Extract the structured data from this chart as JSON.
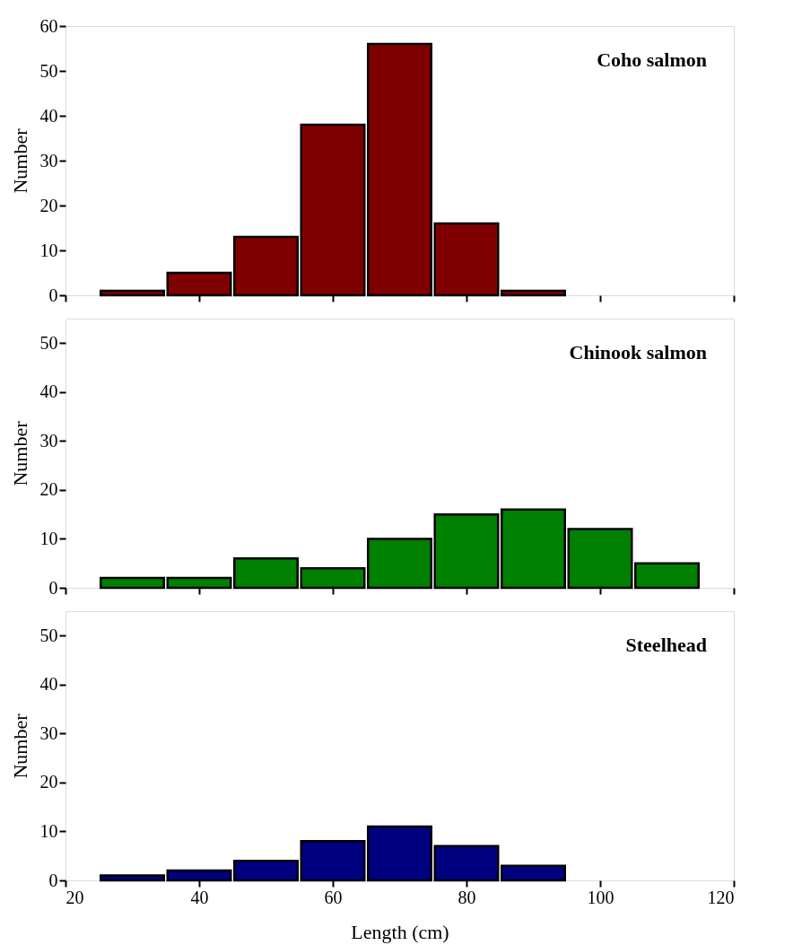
{
  "chart_data": [
    {
      "type": "histogram",
      "title": "Coho salmon",
      "ylabel": "Number",
      "bins": [
        25,
        35,
        45,
        55,
        65,
        75,
        85,
        95
      ],
      "values": [
        1,
        5,
        13,
        38,
        56,
        16,
        1
      ],
      "color": "#800000",
      "xlim": [
        20,
        120
      ],
      "xticks": [
        20,
        40,
        60,
        80,
        100,
        120
      ],
      "ylim": [
        0,
        60
      ],
      "yticks": [
        0,
        10,
        20,
        30,
        40,
        50,
        60
      ],
      "tick_labels": "y",
      "grid": false
    },
    {
      "type": "histogram",
      "title": "Chinook salmon",
      "ylabel": "Number",
      "bins": [
        25,
        35,
        45,
        55,
        65,
        75,
        85,
        95,
        105,
        115
      ],
      "values": [
        2,
        2,
        6,
        4,
        10,
        15,
        16,
        12,
        5
      ],
      "color": "#008000",
      "xlim": [
        20,
        120
      ],
      "xticks": [
        20,
        40,
        60,
        80,
        100,
        120
      ],
      "ylim": [
        0,
        55
      ],
      "yticks": [
        0,
        10,
        20,
        30,
        40,
        50
      ],
      "tick_labels": "y",
      "grid": false
    },
    {
      "type": "histogram",
      "title": "Steelhead",
      "ylabel": "Number",
      "xlabel": "Length (cm)",
      "bins": [
        25,
        35,
        45,
        55,
        65,
        75,
        85,
        95
      ],
      "values": [
        1,
        2,
        4,
        8,
        11,
        7,
        3
      ],
      "color": "#000080",
      "xlim": [
        20,
        120
      ],
      "xticks": [
        20,
        40,
        60,
        80,
        100,
        120
      ],
      "ylim": [
        0,
        55
      ],
      "yticks": [
        0,
        10,
        20,
        30,
        40,
        50
      ],
      "grid": false
    }
  ]
}
